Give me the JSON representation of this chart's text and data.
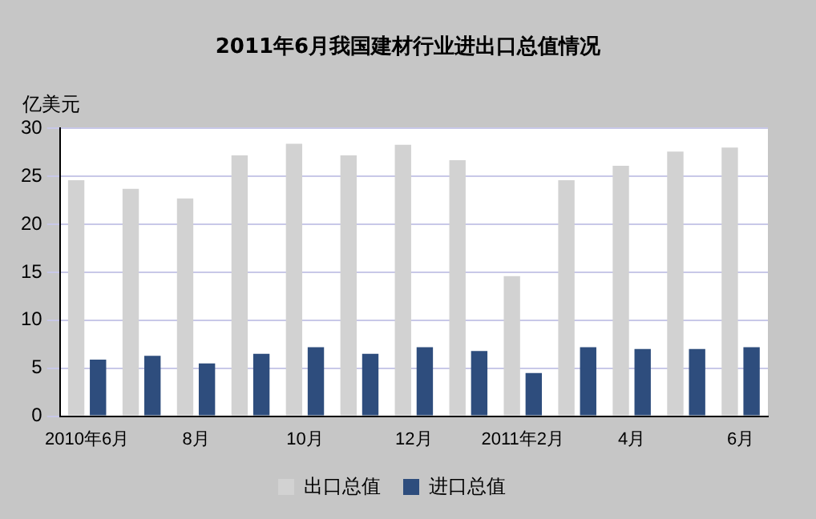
{
  "chart_data": {
    "type": "bar",
    "title": "2011年6月我国建材行业进出口总值情况",
    "ylabel": "亿美元",
    "categories": [
      "2010年6月",
      null,
      "8月",
      null,
      "10月",
      null,
      "12月",
      null,
      "2011年2月",
      null,
      "4月",
      null,
      "6月"
    ],
    "series": [
      {
        "name": "出口总值",
        "color": "#d2d2d2",
        "values": [
          24.6,
          23.7,
          22.7,
          27.2,
          28.4,
          27.2,
          28.3,
          26.7,
          14.6,
          24.6,
          26.1,
          27.6,
          28.0
        ]
      },
      {
        "name": "进口总值",
        "color": "#2e4d7d",
        "values": [
          5.9,
          6.3,
          5.5,
          6.5,
          7.2,
          6.5,
          7.2,
          6.8,
          4.5,
          7.2,
          7.0,
          7.0,
          7.2
        ]
      }
    ],
    "ylim": [
      0,
      30
    ],
    "yticks": [
      0,
      5,
      10,
      15,
      20,
      25,
      30
    ],
    "grid": "y",
    "legend": "bottom"
  }
}
